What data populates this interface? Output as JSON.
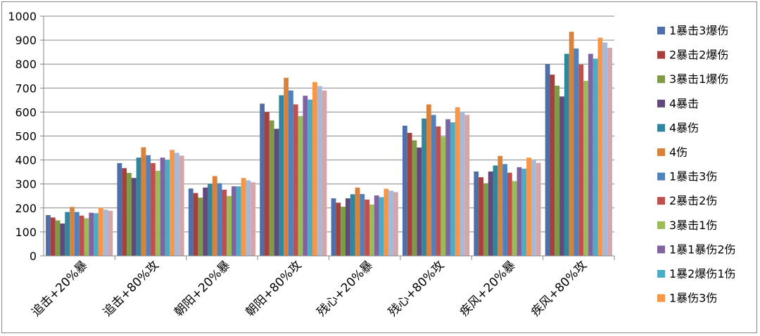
{
  "chart_data": {
    "type": "bar",
    "title": "",
    "xlabel": "",
    "ylabel": "",
    "ylim": [
      0,
      1000
    ],
    "yticks": [
      0,
      100,
      200,
      300,
      400,
      500,
      600,
      700,
      800,
      900,
      1000
    ],
    "grid": true,
    "legend_position": "right",
    "categories": [
      "追击+20%暴",
      "追击+80%攻",
      "朝阳+20%暴",
      "朝阳+80%攻",
      "残心+20%暴",
      "残心+80%攻",
      "疾风+20%暴",
      "疾风+80%攻"
    ],
    "series": [
      {
        "name": "1暴击3爆伤",
        "color": "#4F6FA8",
        "values": [
          170,
          387,
          281,
          635,
          240,
          543,
          352,
          800
        ]
      },
      {
        "name": "2暴击2爆伤",
        "color": "#A6403D",
        "values": [
          160,
          366,
          262,
          600,
          222,
          513,
          328,
          756
        ]
      },
      {
        "name": "3暴击1爆伤",
        "color": "#7F9A48",
        "values": [
          148,
          346,
          243,
          565,
          205,
          482,
          303,
          710
        ]
      },
      {
        "name": "4暴击",
        "color": "#604A7B",
        "values": [
          135,
          325,
          285,
          530,
          240,
          452,
          352,
          665
        ]
      },
      {
        "name": "4暴伤",
        "color": "#31859C",
        "values": [
          183,
          410,
          301,
          670,
          257,
          573,
          377,
          843
        ]
      },
      {
        "name": "4伤",
        "color": "#D9823B",
        "values": [
          204,
          453,
          333,
          743,
          285,
          632,
          417,
          935
        ]
      },
      {
        "name": "1暴击3伤",
        "color": "#4F81BD",
        "values": [
          183,
          420,
          303,
          690,
          258,
          588,
          383,
          865
        ]
      },
      {
        "name": "2暴击2伤",
        "color": "#C0504D",
        "values": [
          168,
          387,
          276,
          632,
          235,
          540,
          347,
          798
        ]
      },
      {
        "name": "3暴击1伤",
        "color": "#9BBB59",
        "values": [
          157,
          355,
          250,
          583,
          214,
          497,
          312,
          730
        ]
      },
      {
        "name": "1暴1暴伤2伤",
        "color": "#8064A2",
        "values": [
          180,
          410,
          290,
          668,
          252,
          570,
          370,
          843
        ]
      },
      {
        "name": "1暴2爆伤1伤",
        "color": "#4BACC6",
        "values": [
          178,
          400,
          290,
          652,
          245,
          557,
          364,
          823
        ]
      },
      {
        "name": "1暴伤3伤",
        "color": "#F79646",
        "values": [
          201,
          442,
          325,
          725,
          280,
          620,
          410,
          910
        ]
      },
      {
        "name": "",
        "color": "#A7B9D9",
        "values": [
          193,
          430,
          315,
          708,
          272,
          602,
          398,
          890
        ]
      },
      {
        "name": "",
        "color": "#D5A6A8",
        "values": [
          188,
          418,
          307,
          690,
          266,
          588,
          388,
          868
        ]
      }
    ]
  }
}
